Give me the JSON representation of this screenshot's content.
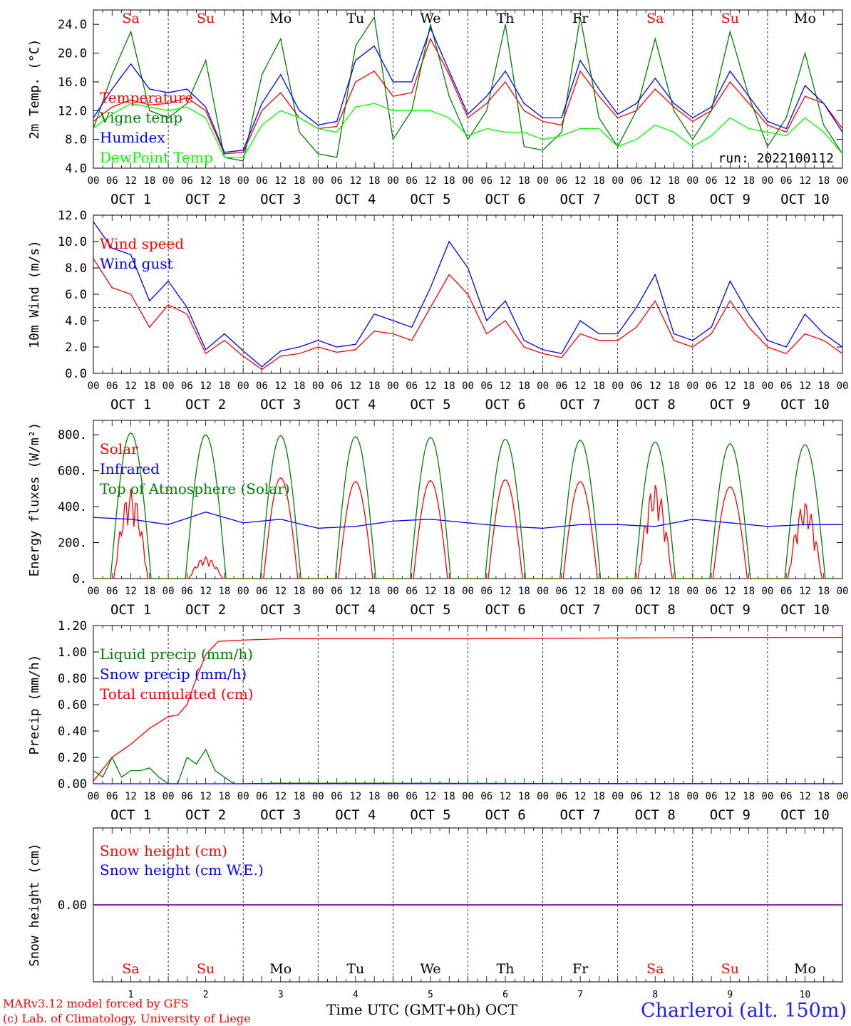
{
  "chart_data": [
    {
      "type": "line",
      "ylabel": "2m Temp. (°C)",
      "ylim": [
        4,
        26
      ],
      "yticks": [
        "4.0",
        "8.0",
        "12.0",
        "16.0",
        "20.0",
        "24.0"
      ],
      "days_top": [
        "Sa",
        "Su",
        "Mo",
        "Tu",
        "We",
        "Th",
        "Fr",
        "Sa",
        "Su",
        "Mo"
      ],
      "run_label": "run: 2022100112",
      "series": [
        {
          "name": "Temperature",
          "color": "#ff0000",
          "x": [
            0,
            6,
            12,
            18,
            24,
            30,
            36,
            42,
            48,
            54,
            60,
            66,
            72,
            78,
            84,
            90,
            96,
            102,
            108,
            114,
            120,
            126,
            132,
            138,
            144,
            150,
            156,
            162,
            168,
            174,
            180,
            186,
            192,
            198,
            204,
            210,
            216,
            222,
            228,
            234,
            240
          ],
          "values": [
            10.5,
            12.5,
            13.5,
            12.8,
            13,
            13.8,
            12,
            6.0,
            6.2,
            12,
            14.5,
            11,
            9.5,
            9.8,
            16,
            17.5,
            14,
            14.5,
            22,
            17,
            11,
            13,
            16,
            12,
            10.5,
            10,
            17.5,
            14,
            11,
            12,
            15,
            12.5,
            10.5,
            12,
            16,
            13,
            10,
            9,
            14,
            13,
            9.5
          ]
        },
        {
          "name": "Vigne temp",
          "color": "#008000",
          "x": [
            0,
            6,
            12,
            18,
            24,
            30,
            36,
            42,
            48,
            54,
            60,
            66,
            72,
            78,
            84,
            90,
            96,
            102,
            108,
            114,
            120,
            126,
            132,
            138,
            144,
            150,
            156,
            162,
            168,
            174,
            180,
            186,
            192,
            198,
            204,
            210,
            216,
            222,
            228,
            234,
            240
          ],
          "values": [
            9.5,
            17,
            23,
            12,
            11,
            13,
            19,
            5.5,
            5.0,
            17,
            22,
            9,
            6,
            5.5,
            21,
            25,
            8,
            12,
            24,
            14,
            8,
            12,
            24,
            7,
            6.5,
            9,
            25,
            11,
            7,
            12,
            22,
            12,
            8,
            12,
            23,
            14,
            7,
            11,
            20,
            10,
            6
          ]
        },
        {
          "name": "Humidex",
          "color": "#0000ff",
          "x": [
            0,
            6,
            12,
            18,
            24,
            30,
            36,
            42,
            48,
            54,
            60,
            66,
            72,
            78,
            84,
            90,
            96,
            102,
            108,
            114,
            120,
            126,
            132,
            138,
            144,
            150,
            156,
            162,
            168,
            174,
            180,
            186,
            192,
            198,
            204,
            210,
            216,
            222,
            228,
            234,
            240
          ],
          "values": [
            11,
            15,
            18.5,
            15,
            14.5,
            15,
            12.5,
            6.2,
            6.5,
            13,
            17,
            12,
            10,
            10.5,
            19,
            21,
            16,
            16,
            23.5,
            17.5,
            11.5,
            14,
            17.5,
            13,
            11,
            11,
            19,
            15,
            11.5,
            13,
            16.5,
            13,
            11,
            12.5,
            17.5,
            14,
            10.5,
            9.5,
            15.5,
            13,
            9
          ]
        },
        {
          "name": "DewPoint Temp",
          "color": "#00ff00",
          "x": [
            0,
            6,
            12,
            18,
            24,
            30,
            36,
            42,
            48,
            54,
            60,
            66,
            72,
            78,
            84,
            90,
            96,
            102,
            108,
            114,
            120,
            126,
            132,
            138,
            144,
            150,
            156,
            162,
            168,
            174,
            180,
            186,
            192,
            198,
            204,
            210,
            216,
            222,
            228,
            234,
            240
          ],
          "values": [
            9.5,
            11.5,
            13,
            12.5,
            12,
            12.5,
            11,
            5.5,
            5.5,
            10,
            12,
            11,
            9.5,
            9,
            12.5,
            13,
            12,
            12,
            12,
            11,
            8.5,
            9.5,
            9,
            9,
            8,
            8.5,
            9.5,
            9.5,
            7,
            8,
            10,
            9,
            7,
            8.5,
            11,
            9.5,
            9,
            8.5,
            11,
            9,
            6
          ]
        }
      ]
    },
    {
      "type": "line",
      "ylabel": "10m Wind (m/s)",
      "ylim": [
        0,
        12
      ],
      "yticks": [
        "0.0",
        "2.0",
        "4.0",
        "6.0",
        "8.0",
        "10.0",
        "12.0"
      ],
      "threshold": 5,
      "series": [
        {
          "name": "Wind speed",
          "color": "#ff0000",
          "x": [
            0,
            6,
            12,
            18,
            24,
            30,
            36,
            42,
            48,
            54,
            60,
            66,
            72,
            78,
            84,
            90,
            96,
            102,
            108,
            114,
            120,
            126,
            132,
            138,
            144,
            150,
            156,
            162,
            168,
            174,
            180,
            186,
            192,
            198,
            204,
            210,
            216,
            222,
            228,
            234,
            240
          ],
          "values": [
            8.7,
            6.5,
            6,
            3.5,
            5.2,
            4.5,
            1.5,
            2.5,
            1.3,
            0.3,
            1.3,
            1.5,
            2,
            1.6,
            1.8,
            3.2,
            3,
            2.5,
            5,
            7.5,
            6,
            3,
            4,
            2,
            1.5,
            1.2,
            3,
            2.5,
            2.5,
            3.5,
            5.5,
            2.5,
            2,
            3,
            5.5,
            3.5,
            2,
            1.5,
            3,
            2.5,
            1.5
          ]
        },
        {
          "name": "Wind gust",
          "color": "#0000ff",
          "x": [
            0,
            6,
            12,
            18,
            24,
            30,
            36,
            42,
            48,
            54,
            60,
            66,
            72,
            78,
            84,
            90,
            96,
            102,
            108,
            114,
            120,
            126,
            132,
            138,
            144,
            150,
            156,
            162,
            168,
            174,
            180,
            186,
            192,
            198,
            204,
            210,
            216,
            222,
            228,
            234,
            240
          ],
          "values": [
            11.5,
            9.5,
            9,
            5.5,
            7,
            5,
            1.8,
            3,
            1.7,
            0.5,
            1.7,
            2,
            2.5,
            2,
            2.2,
            4.5,
            4,
            3.5,
            6.5,
            10,
            8,
            4,
            5.5,
            2.5,
            1.8,
            1.5,
            4,
            3,
            3,
            5,
            7.5,
            3,
            2.5,
            3.5,
            7,
            4.5,
            2.5,
            2,
            4.5,
            3,
            2
          ]
        }
      ]
    },
    {
      "type": "line",
      "ylabel": "Energy fluxes (W/m²)",
      "ylim": [
        0,
        880
      ],
      "yticks": [
        "0.",
        "200.",
        "400.",
        "600.",
        "800."
      ],
      "series": [
        {
          "name": "Solar",
          "color": "#ff0000",
          "daily_peak": [
            500,
            120,
            560,
            540,
            545,
            550,
            540,
            530,
            510,
            430
          ]
        },
        {
          "name": "Infrared",
          "color": "#0000ff",
          "x": [
            0,
            12,
            24,
            36,
            48,
            60,
            72,
            84,
            96,
            108,
            120,
            132,
            144,
            156,
            168,
            180,
            192,
            204,
            216,
            228,
            240
          ],
          "values": [
            340,
            330,
            300,
            370,
            310,
            330,
            280,
            290,
            320,
            330,
            310,
            290,
            280,
            300,
            300,
            290,
            330,
            310,
            290,
            300,
            300
          ]
        },
        {
          "name": "Top of Atmosphere (Solar)",
          "color": "#008000",
          "daily_peak": [
            810,
            800,
            795,
            790,
            785,
            775,
            770,
            760,
            750,
            745
          ]
        }
      ]
    },
    {
      "type": "line",
      "ylabel": "Precip (mm/h)",
      "ylim": [
        0,
        1.2
      ],
      "yticks": [
        "0.00",
        "0.20",
        "0.40",
        "0.60",
        "0.80",
        "1.00",
        "1.20"
      ],
      "series": [
        {
          "name": "Liquid precip (mm/h)",
          "color": "#008000",
          "x": [
            0,
            3,
            6,
            9,
            12,
            15,
            18,
            21,
            24,
            27,
            30,
            33,
            36,
            39,
            42,
            45,
            48,
            60,
            240
          ],
          "values": [
            0.1,
            0.05,
            0.2,
            0.05,
            0.1,
            0.1,
            0.12,
            0.05,
            0,
            0,
            0.2,
            0.15,
            0.26,
            0.1,
            0.05,
            0,
            0,
            0.005,
            0
          ]
        },
        {
          "name": "Snow precip (mm/h)",
          "color": "#0000ff",
          "x": [
            0,
            240
          ],
          "values": [
            0,
            0
          ]
        },
        {
          "name": "Total cumulated (cm)",
          "color": "#ff0000",
          "x": [
            0,
            6,
            12,
            18,
            24,
            27,
            30,
            33,
            36,
            40,
            48,
            60,
            120,
            200,
            240
          ],
          "values": [
            0.02,
            0.2,
            0.3,
            0.42,
            0.51,
            0.52,
            0.6,
            0.8,
            0.98,
            1.08,
            1.09,
            1.1,
            1.1,
            1.11,
            1.11
          ]
        }
      ]
    },
    {
      "type": "line",
      "ylabel": "Snow height (cm)",
      "ylim": [
        -1,
        1
      ],
      "yticks": [
        "0.00"
      ],
      "series": [
        {
          "name": "Snow height (cm)",
          "color": "#ff0000",
          "x": [
            0,
            240
          ],
          "values": [
            0,
            0
          ]
        },
        {
          "name": "Snow height (cm W.E.)",
          "color": "#0000ff",
          "x": [
            0,
            240
          ],
          "values": [
            0,
            0
          ]
        }
      ]
    }
  ],
  "x_axis": {
    "hour_ticks": [
      "00",
      "06",
      "12",
      "18"
    ],
    "day_labels": [
      "OCT 1",
      "OCT 2",
      "OCT 3",
      "OCT 4",
      "OCT 5",
      "OCT 6",
      "OCT 7",
      "OCT 8",
      "OCT 9",
      "OCT 10"
    ],
    "day_numbers": [
      "1",
      "2",
      "3",
      "4",
      "5",
      "6",
      "7",
      "8",
      "9",
      "10"
    ],
    "final_tick": "00",
    "title": "Time UTC (GMT+0h) OCT"
  },
  "weekend_color": "#ff0000",
  "weekday_color": "#000000",
  "footer": {
    "credit_line1": "MARv3.12 model forced by GFS",
    "credit_line2": "(c) Lab. of Climatology, University of Liege",
    "station": "Charleroi (alt. 150m)"
  }
}
